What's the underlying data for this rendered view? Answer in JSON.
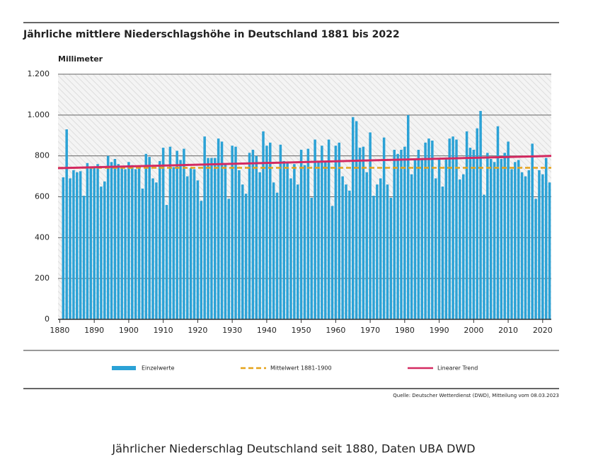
{
  "chart_data": {
    "type": "bar",
    "title": "Jährliche mittlere Niederschlagshöhe in Deutschland 1881 bis 2022",
    "y_label": "Millimeter",
    "source": "Quelle: Deutscher Wetterdienst (DWD), Mitteilung vom 08.03.2023",
    "caption": "Jährlicher Niederschlag Deutschland seit 1880, Daten UBA DWD",
    "xlim": [
      1879.5,
      2022.5
    ],
    "xticks": [
      1880,
      1890,
      1900,
      1910,
      1920,
      1930,
      1940,
      1950,
      1960,
      1970,
      1980,
      1990,
      2000,
      2010,
      2020
    ],
    "ylim": [
      0,
      1200
    ],
    "yticks": [
      0,
      200,
      400,
      600,
      800,
      {
        "value": 1000,
        "label": "1.000"
      },
      {
        "value": 1200,
        "label": "1.200"
      }
    ],
    "grid": true,
    "x": [
      1881,
      1882,
      1883,
      1884,
      1885,
      1886,
      1887,
      1888,
      1889,
      1890,
      1891,
      1892,
      1893,
      1894,
      1895,
      1896,
      1897,
      1898,
      1899,
      1900,
      1901,
      1902,
      1903,
      1904,
      1905,
      1906,
      1907,
      1908,
      1909,
      1910,
      1911,
      1912,
      1913,
      1914,
      1915,
      1916,
      1917,
      1918,
      1919,
      1920,
      1921,
      1922,
      1923,
      1924,
      1925,
      1926,
      1927,
      1928,
      1929,
      1930,
      1931,
      1932,
      1933,
      1934,
      1935,
      1936,
      1937,
      1938,
      1939,
      1940,
      1941,
      1942,
      1943,
      1944,
      1945,
      1946,
      1947,
      1948,
      1949,
      1950,
      1951,
      1952,
      1953,
      1954,
      1955,
      1956,
      1957,
      1958,
      1959,
      1960,
      1961,
      1962,
      1963,
      1964,
      1965,
      1966,
      1967,
      1968,
      1969,
      1970,
      1971,
      1972,
      1973,
      1974,
      1975,
      1976,
      1977,
      1978,
      1979,
      1980,
      1981,
      1982,
      1983,
      1984,
      1985,
      1986,
      1987,
      1988,
      1989,
      1990,
      1991,
      1992,
      1993,
      1994,
      1995,
      1996,
      1997,
      1998,
      1999,
      2000,
      2001,
      2002,
      2003,
      2004,
      2005,
      2006,
      2007,
      2008,
      2009,
      2010,
      2011,
      2012,
      2013,
      2014,
      2015,
      2016,
      2017,
      2018,
      2019,
      2020,
      2021,
      2022
    ],
    "series": [
      {
        "name": "Einzelwerte",
        "type": "bar",
        "color": "#2ba2d6",
        "values": [
          695,
          930,
          690,
          730,
          720,
          725,
          605,
          765,
          745,
          745,
          760,
          650,
          675,
          800,
          770,
          785,
          760,
          740,
          735,
          770,
          755,
          735,
          740,
          640,
          810,
          795,
          690,
          670,
          775,
          840,
          560,
          845,
          745,
          825,
          780,
          835,
          700,
          740,
          735,
          680,
          580,
          895,
          790,
          790,
          790,
          885,
          870,
          760,
          590,
          850,
          845,
          730,
          660,
          615,
          815,
          830,
          800,
          720,
          920,
          850,
          865,
          670,
          620,
          855,
          775,
          770,
          690,
          760,
          660,
          830,
          755,
          835,
          595,
          880,
          770,
          850,
          770,
          880,
          555,
          850,
          865,
          700,
          660,
          630,
          990,
          970,
          840,
          845,
          720,
          915,
          605,
          660,
          690,
          890,
          660,
          595,
          830,
          810,
          830,
          845,
          1000,
          710,
          780,
          830,
          790,
          865,
          885,
          875,
          690,
          790,
          650,
          790,
          885,
          895,
          880,
          685,
          710,
          920,
          840,
          830,
          935,
          1020,
          610,
          815,
          785,
          770,
          945,
          785,
          815,
          870,
          735,
          770,
          780,
          720,
          700,
          730,
          860,
          590,
          730,
          710,
          790,
          670
        ]
      },
      {
        "name": "Mittelwert 1881-1900",
        "type": "dashed",
        "color": "#e5a21a",
        "x": [
          1879.5,
          2022.5
        ],
        "values": [
          742,
          742
        ]
      },
      {
        "name": "Linearer Trend",
        "type": "line",
        "color": "#d42a61",
        "x": [
          1879.5,
          2022.5
        ],
        "values": [
          740,
          800
        ]
      }
    ]
  }
}
